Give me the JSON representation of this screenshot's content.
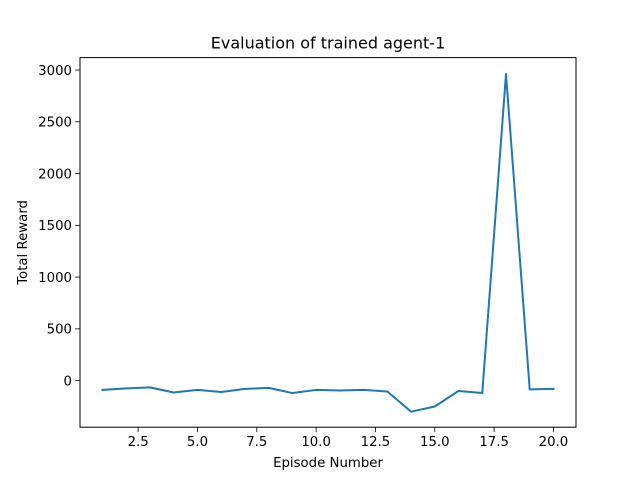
{
  "chart_data": {
    "type": "line",
    "title": "Evaluation of trained agent-1",
    "xlabel": "Episode Number",
    "ylabel": "Total Reward",
    "xlim": [
      0.05,
      20.95
    ],
    "ylim": [
      -450,
      3120
    ],
    "xticks": [
      2.5,
      5.0,
      7.5,
      10.0,
      12.5,
      15.0,
      17.5,
      20.0
    ],
    "xtick_labels": [
      "2.5",
      "5.0",
      "7.5",
      "10.0",
      "12.5",
      "15.0",
      "17.5",
      "20.0"
    ],
    "yticks": [
      0,
      500,
      1000,
      1500,
      2000,
      2500,
      3000
    ],
    "ytick_labels": [
      "0",
      "500",
      "1000",
      "1500",
      "2000",
      "2500",
      "3000"
    ],
    "grid": false,
    "color": "#1f77b4",
    "x": [
      1,
      2,
      3,
      4,
      5,
      6,
      7,
      8,
      9,
      10,
      11,
      12,
      13,
      14,
      15,
      16,
      17,
      18,
      19,
      20
    ],
    "y": [
      -90,
      -75,
      -65,
      -115,
      -90,
      -110,
      -80,
      -70,
      -120,
      -90,
      -95,
      -90,
      -105,
      -300,
      -250,
      -100,
      -120,
      2960,
      -85,
      -80
    ]
  }
}
